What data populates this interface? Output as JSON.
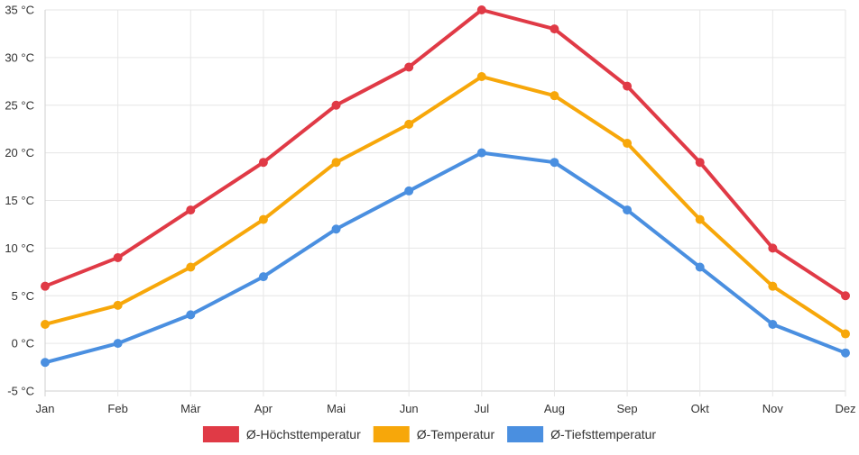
{
  "chart_data": {
    "type": "line",
    "title": "",
    "xlabel": "",
    "ylabel": "",
    "categories": [
      "Jan",
      "Feb",
      "Mär",
      "Apr",
      "Mai",
      "Jun",
      "Jul",
      "Aug",
      "Sep",
      "Okt",
      "Nov",
      "Dez"
    ],
    "ylim": [
      -5,
      35
    ],
    "yticks": [
      -5,
      0,
      5,
      10,
      15,
      20,
      25,
      30,
      35
    ],
    "y_unit": "°C",
    "grid": true,
    "legend_position": "bottom-center",
    "series": [
      {
        "name": "Ø-Höchsttemperatur",
        "color": "#e03a46",
        "values": [
          6,
          9,
          14,
          19,
          25,
          29,
          35,
          33,
          27,
          19,
          10,
          5
        ]
      },
      {
        "name": "Ø-Temperatur",
        "color": "#f7a70a",
        "values": [
          2,
          4,
          8,
          13,
          19,
          23,
          28,
          26,
          21,
          13,
          6,
          1
        ]
      },
      {
        "name": "Ø-Tiefsttemperatur",
        "color": "#4a8fe0",
        "values": [
          -2,
          0,
          3,
          7,
          12,
          16,
          20,
          19,
          14,
          8,
          2,
          -1
        ]
      }
    ]
  }
}
